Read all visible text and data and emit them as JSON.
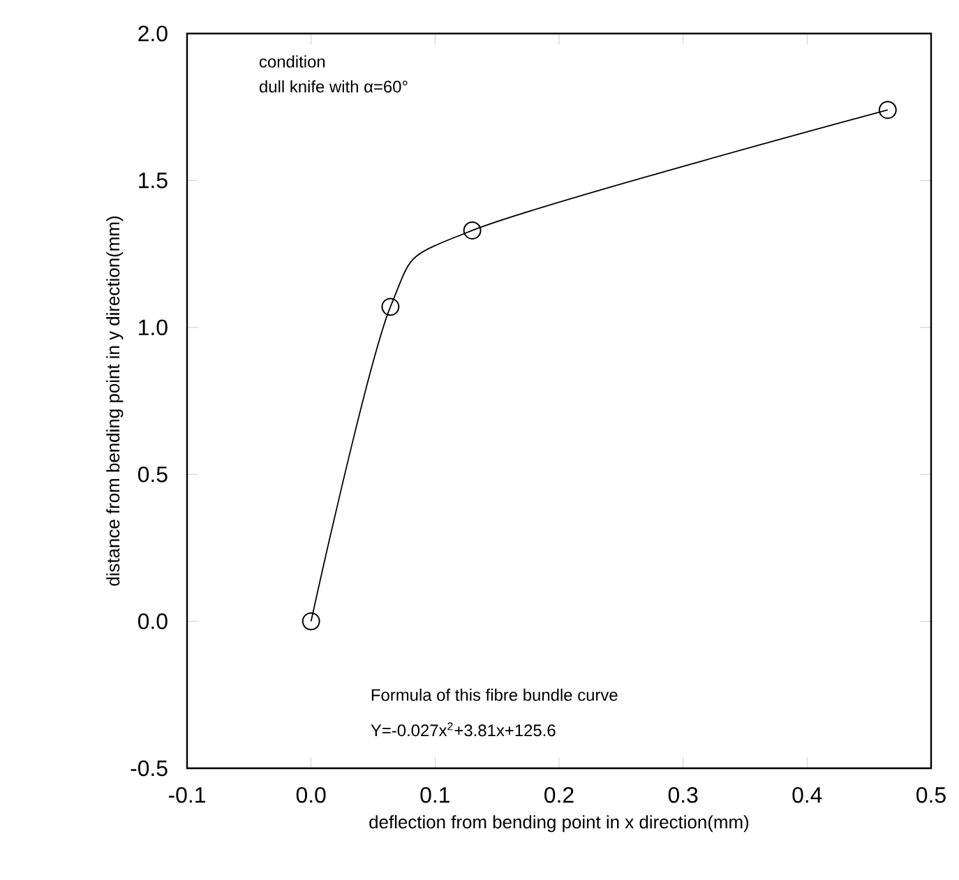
{
  "chart_data": {
    "type": "line",
    "xlabel": "deflection from bending point in x direction(mm)",
    "ylabel": "distance from bending point in y direction(mm)",
    "x": [
      0.0,
      0.064,
      0.13,
      0.465
    ],
    "series": [
      {
        "color": "#000000",
        "values": [
          0.0,
          1.07,
          1.33,
          1.74
        ]
      }
    ],
    "xlim": [
      -0.1,
      0.5
    ],
    "ylim": [
      -0.5,
      2.0
    ],
    "xticks": [
      {
        "value": -0.1,
        "label": "-0.1"
      },
      {
        "value": 0,
        "label": "0.0"
      },
      {
        "value": 0.1,
        "label": "0.1"
      },
      {
        "value": 0.2,
        "label": "0.2"
      },
      {
        "value": 0.3,
        "label": "0.3"
      },
      {
        "value": 0.4,
        "label": "0.4"
      },
      {
        "value": 0.5,
        "label": "0.5"
      }
    ],
    "yticks": [
      {
        "value": -0.5,
        "label": "-0.5"
      },
      {
        "value": 0,
        "label": "0.0"
      },
      {
        "value": 0.5,
        "label": "0.5"
      },
      {
        "value": 1.0,
        "label": "1.0"
      },
      {
        "value": 1.5,
        "label": "1.5"
      },
      {
        "value": 2.0,
        "label": "2.0"
      }
    ],
    "annotations": [
      "condition",
      "dull knife with α=60°",
      "Formula of this fibre bundle curve",
      "Y=-0.027x$^{2}$+3.81x+125.6"
    ],
    "marker": "circle",
    "line_style": "solid",
    "grid": false
  }
}
